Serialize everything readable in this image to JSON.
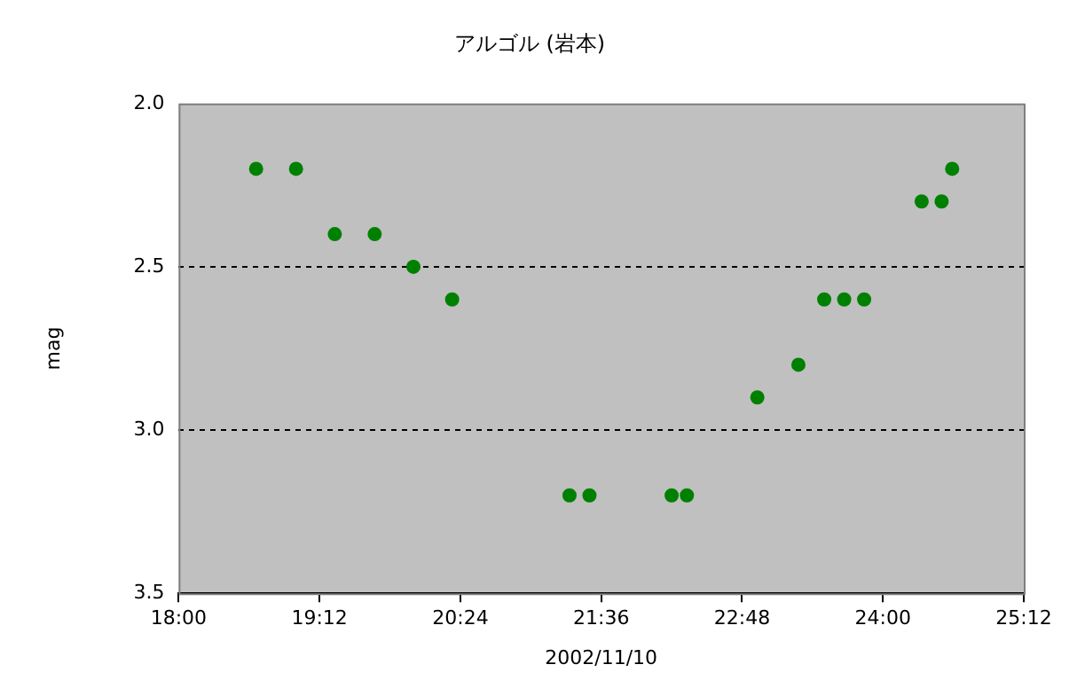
{
  "chart_data": {
    "type": "scatter",
    "title": "アルゴル (岩本)",
    "xlabel": "2002/11/10",
    "ylabel": "mag",
    "x": [
      18.66,
      19.0,
      19.33,
      19.67,
      20.0,
      20.33,
      21.33,
      21.5,
      22.2,
      22.33,
      22.93,
      23.28,
      23.5,
      23.67,
      23.84,
      24.33,
      24.5,
      24.59
    ],
    "series": [
      {
        "color": "#008000",
        "values": [
          2.2,
          2.2,
          2.4,
          2.4,
          2.5,
          2.6,
          3.2,
          3.2,
          3.2,
          3.2,
          2.9,
          2.8,
          2.6,
          2.6,
          2.6,
          2.3,
          2.3,
          2.2
        ]
      }
    ],
    "xlim": [
      18,
      25.2
    ],
    "xticks": [
      {
        "value": 18,
        "label": "18:00"
      },
      {
        "value": 19.2,
        "label": "19:12"
      },
      {
        "value": 20.4,
        "label": "20:24"
      },
      {
        "value": 21.6,
        "label": "21:36"
      },
      {
        "value": 22.8,
        "label": "22:48"
      },
      {
        "value": 24,
        "label": "24:00"
      },
      {
        "value": 25.2,
        "label": "25:12"
      }
    ],
    "ylim": [
      3.5,
      2.0
    ],
    "yticks": [
      {
        "value": 2.0,
        "label": "2.0"
      },
      {
        "value": 2.5,
        "label": "2.5"
      },
      {
        "value": 3.0,
        "label": "3.0"
      },
      {
        "value": 3.5,
        "label": "3.5"
      }
    ],
    "grid": "y",
    "line_style": "dashed",
    "marker": "circle",
    "legend": false
  }
}
